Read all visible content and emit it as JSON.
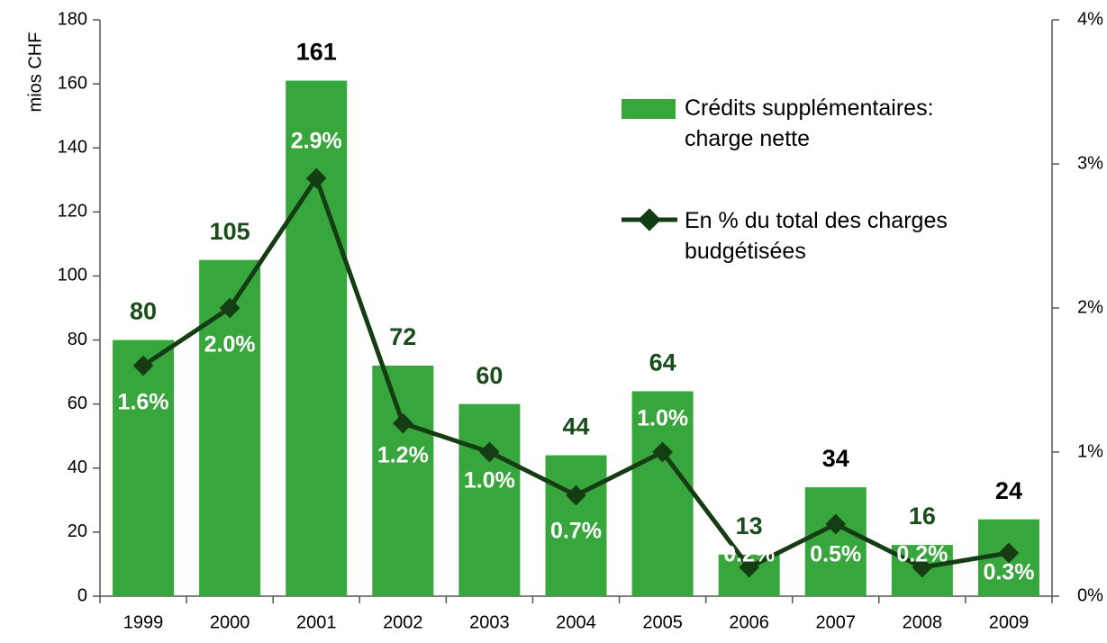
{
  "chart_data": {
    "type": "bar_line",
    "ylabel": "mios CHF",
    "categories": [
      "1999",
      "2000",
      "2001",
      "2002",
      "2003",
      "2004",
      "2005",
      "2006",
      "2007",
      "2008",
      "2009"
    ],
    "series": [
      {
        "name": "Crédits supplémentaires: charge nette",
        "type": "bar",
        "color": "#37a63c",
        "values": [
          80,
          105,
          161,
          72,
          60,
          44,
          64,
          13,
          34,
          16,
          24
        ],
        "value_label_colors": [
          "#1b4d1b",
          "#1b4d1b",
          "#000000",
          "#1b4d1b",
          "#1b4d1b",
          "#1b4d1b",
          "#1b4d1b",
          "#1b4d1b",
          "#000000",
          "#1b4d1b",
          "#000000"
        ]
      },
      {
        "name": "En % du total des charges budgétisées",
        "type": "line",
        "axis": "y2",
        "color": "#143d14",
        "values": [
          1.6,
          2.0,
          2.9,
          1.2,
          1.0,
          0.7,
          1.0,
          0.2,
          0.5,
          0.2,
          0.3
        ],
        "value_labels": [
          "1.6%",
          "2.0%",
          "2.9%",
          "1.2%",
          "1.0%",
          "0.7%",
          "1.0%",
          "0.2%",
          "0.5%",
          "0.2%",
          "0.3%"
        ]
      }
    ],
    "ylim": [
      0,
      180
    ],
    "yticks": [
      0,
      20,
      40,
      60,
      80,
      100,
      120,
      140,
      160,
      180
    ],
    "y2lim": [
      0,
      4
    ],
    "y2ticks": [
      {
        "value": 0,
        "label": "0%"
      },
      {
        "value": 1,
        "label": "1%"
      },
      {
        "value": 2,
        "label": "2%"
      },
      {
        "value": 3,
        "label": "3%"
      },
      {
        "value": 4,
        "label": "4%"
      }
    ],
    "legend": "upper right"
  }
}
